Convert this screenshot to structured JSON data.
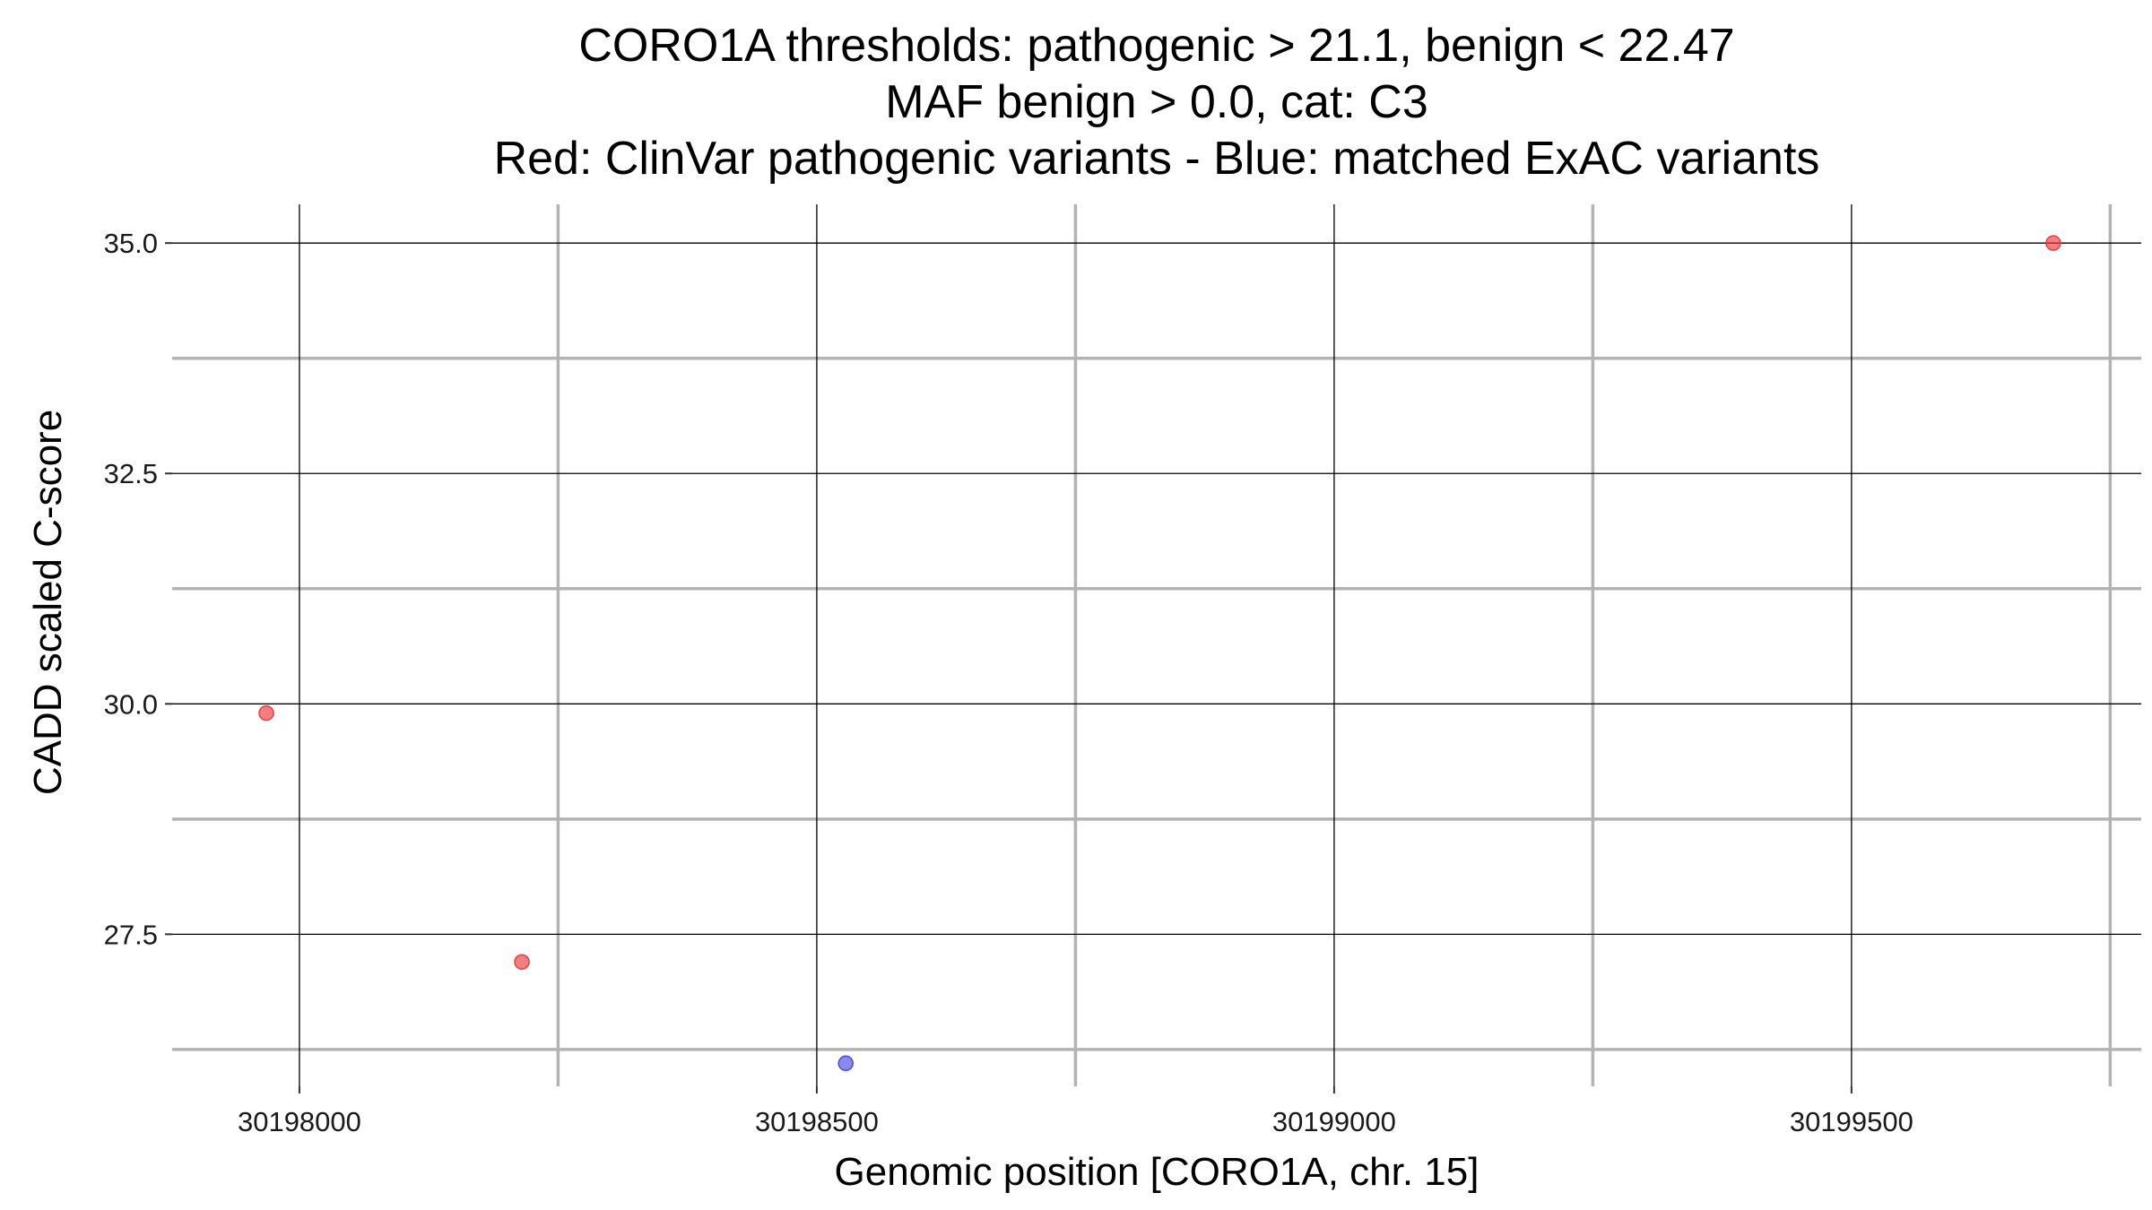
{
  "chart_data": {
    "type": "scatter",
    "title_lines": [
      "CORO1A thresholds: pathogenic > 21.1, benign < 22.47",
      "MAF benign > 0.0, cat: C3",
      "Red: ClinVar pathogenic variants - Blue: matched ExAC variants"
    ],
    "xlabel": "Genomic position [CORO1A, chr. 15]",
    "ylabel": "CADD scaled C-score",
    "xlim": [
      30197877,
      30199780
    ],
    "ylim": [
      25.85,
      35.42
    ],
    "x_ticks": [
      30198000,
      30198500,
      30199000,
      30199500
    ],
    "x_tick_labels": [
      "30198000",
      "30198500",
      "30199000",
      "30199500"
    ],
    "x_minor": [
      30198250,
      30198750,
      30199250,
      30199750
    ],
    "y_ticks": [
      27.5,
      30.0,
      32.5,
      35.0
    ],
    "y_tick_labels": [
      "27.5",
      "30.0",
      "32.5",
      "35.0"
    ],
    "y_minor": [
      26.25,
      28.75,
      31.25,
      33.75
    ],
    "grid": true,
    "series": [
      {
        "color": "#f03b3b",
        "points": [
          {
            "x": 30197968,
            "y": 29.9
          },
          {
            "x": 30198215,
            "y": 27.2
          },
          {
            "x": 30199695,
            "y": 35.0
          }
        ]
      },
      {
        "color": "#4a4ae8",
        "points": [
          {
            "x": 30198528,
            "y": 26.1
          }
        ]
      }
    ]
  }
}
